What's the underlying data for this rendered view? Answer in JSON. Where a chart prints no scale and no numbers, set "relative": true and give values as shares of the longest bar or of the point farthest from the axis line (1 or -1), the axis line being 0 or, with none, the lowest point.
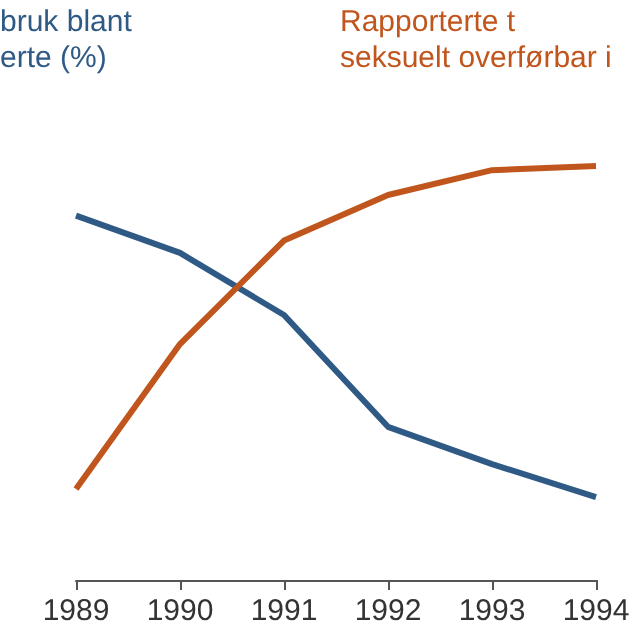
{
  "chart_data": {
    "type": "line",
    "relative": true,
    "categories": [
      "1989",
      "1990",
      "1991",
      "1992",
      "1993",
      "1994"
    ],
    "series": [
      {
        "name": "bruk blant\nerte (%)",
        "color": "#2f5a86",
        "values": [
          0.88,
          0.79,
          0.64,
          0.37,
          0.28,
          0.2
        ]
      },
      {
        "name": "Rapporterte t\nseksuelt overførbar i",
        "color": "#c0561d",
        "values": [
          0.22,
          0.57,
          0.82,
          0.93,
          0.99,
          1
        ]
      }
    ],
    "legend": false,
    "grid": false,
    "marker": "none"
  }
}
